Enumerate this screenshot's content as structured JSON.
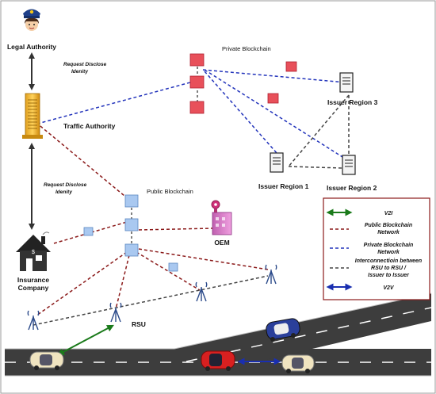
{
  "nodes": {
    "legal_authority": "Legal Authority",
    "traffic_authority": "Traffic Authority",
    "insurance_company": [
      "Insurance",
      "Company"
    ],
    "oem": "OEM",
    "rsu": "RSU",
    "issuer_region_1": "Issuer Region 1",
    "issuer_region_2": "Issuer Region 2",
    "issuer_region_3": "Issuer Region 3",
    "private_blockchain": "Private Blockchain",
    "public_blockchain": "Public Blockchain"
  },
  "annotations": {
    "request_disclose_top": [
      "Request  Disclose",
      "Idenity"
    ],
    "request_disclose_mid": [
      "Request  Disclose",
      "Idenity"
    ]
  },
  "legend": {
    "items": [
      {
        "key": "v2i",
        "label": [
          "V2I"
        ],
        "style": "double-arrow",
        "color": "#1a7a1a"
      },
      {
        "key": "public",
        "label": [
          "Public Blockchain",
          "Network"
        ],
        "style": "dashed",
        "color": "#8b1a1a"
      },
      {
        "key": "private",
        "label": [
          "Private Blockchain",
          "Network"
        ],
        "style": "dashed",
        "color": "#2233bb"
      },
      {
        "key": "interconnect",
        "label": [
          "Interconnectioin between",
          "RSU to RSU /",
          "Issuer to Issuer"
        ],
        "style": "dashed",
        "color": "#333333"
      },
      {
        "key": "v2v",
        "label": [
          "V2V"
        ],
        "style": "double-arrow",
        "color": "#1a2fb0"
      }
    ]
  },
  "colors": {
    "public_line": "#8b1a1a",
    "private_line": "#2233bb",
    "interconnect_line": "#444444",
    "v2i": "#1a7a1a",
    "v2v": "#1a2fb0",
    "private_block": "#e8505a",
    "public_block": "#a9c8f0"
  }
}
